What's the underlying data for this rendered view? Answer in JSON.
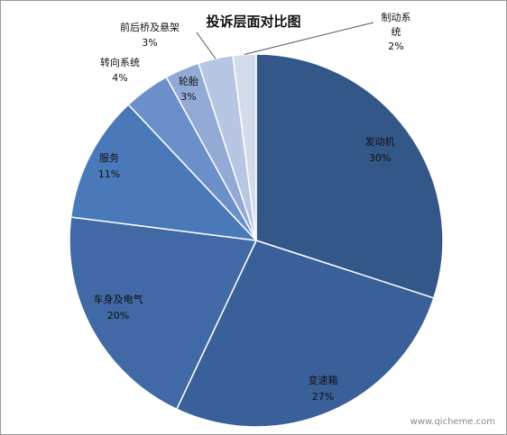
{
  "chart_data": {
    "type": "pie",
    "title": "投诉层面对比图",
    "unit": "%",
    "slices": [
      {
        "label": "发动机",
        "value": 30,
        "pct_label": "30%",
        "color": "#34578a"
      },
      {
        "label": "变速箱",
        "value": 27,
        "pct_label": "27%",
        "color": "#3a609a"
      },
      {
        "label": "车身及电气",
        "value": 20,
        "pct_label": "20%",
        "color": "#4169a5"
      },
      {
        "label": "服务",
        "value": 11,
        "pct_label": "11%",
        "color": "#4a79b9"
      },
      {
        "label": "转向系统",
        "value": 4,
        "pct_label": "4%",
        "color": "#6b8fc8"
      },
      {
        "label": "轮胎",
        "value": 3,
        "pct_label": "3%",
        "color": "#93aad6"
      },
      {
        "label": "前后桥及悬架",
        "value": 3,
        "pct_label": "3%",
        "color": "#b7c6e3"
      },
      {
        "label": "制动系统",
        "label_lines": [
          "制动系",
          "统"
        ],
        "value": 2,
        "pct_label": "2%",
        "color": "#d4dcec"
      }
    ],
    "legend": "none",
    "data_labels": "category name and percent"
  },
  "watermark": "www.qicheme.com"
}
